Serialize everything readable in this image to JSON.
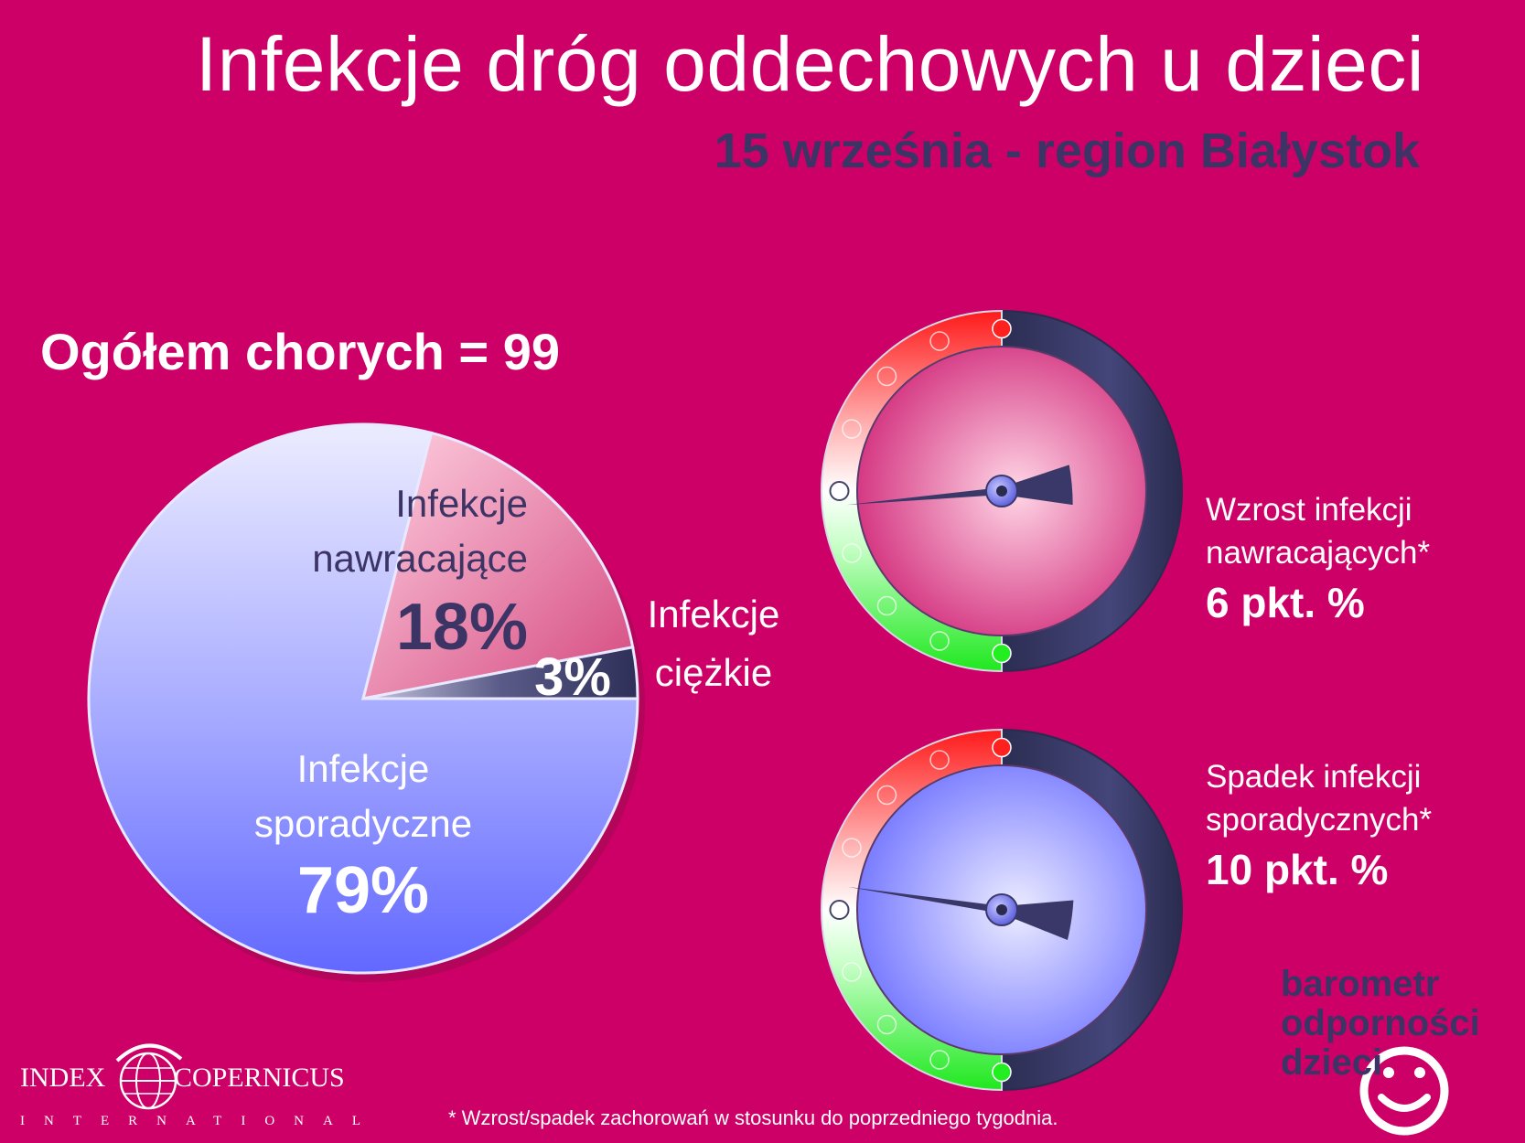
{
  "header": {
    "title": "Infekcje dróg oddechowych u dzieci",
    "subtitle": "15 września - region Białystok"
  },
  "total_label": "Ogółem chorych = 99",
  "chart_data": [
    {
      "type": "pie",
      "slices": [
        {
          "label_lines": [
            "Infekcje",
            "nawracające"
          ],
          "percent_label": "18%",
          "value": 18,
          "color": "#e8a0bc"
        },
        {
          "label_lines": [
            "Infekcje",
            "ciężkie"
          ],
          "percent_label": "3%",
          "value": 3,
          "color": "#3d3f6e"
        },
        {
          "label_lines": [
            "Infekcje",
            "sporadyczne"
          ],
          "percent_label": "79%",
          "value": 79,
          "color": "#8f94ff"
        }
      ]
    }
  ],
  "gauges": [
    {
      "name": "nawracajace",
      "lines": [
        "Wzrost infekcji",
        "nawracających*"
      ],
      "value_label": "6 pkt. %",
      "change": 6,
      "face_color": "#d5317f",
      "face_highlight": "#ffd0e2"
    },
    {
      "name": "sporadyczne",
      "lines": [
        "Spadek infekcji",
        "sporadycznych*"
      ],
      "value_label": "10 pkt. %",
      "change": -10,
      "face_color": "#7a7cff",
      "face_highlight": "#e6e6ff"
    }
  ],
  "footnote": "* Wzrost/spadek zachorowań w stosunku do poprzedniego tygodnia.",
  "brand": {
    "line1": "barometr",
    "line2": "odporności",
    "line3": "dzieci"
  },
  "logo": {
    "left": "INDEX",
    "right": "COPERNICUS",
    "sub": "INTERNATIONAL"
  },
  "colors": {
    "background": "#cc0066",
    "dark": "#3d3466",
    "ring_dark": "#3a3b60",
    "ring_red": "#ff2020",
    "ring_green": "#22ee22"
  }
}
